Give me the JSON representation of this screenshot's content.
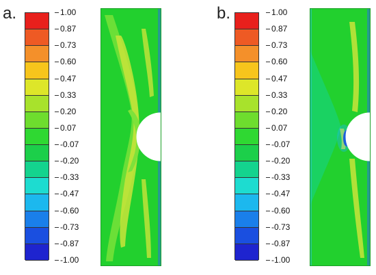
{
  "panels": [
    {
      "label": "a.",
      "id": "a"
    },
    {
      "label": "b.",
      "id": "b"
    }
  ],
  "legend": {
    "ticks": [
      "1.00",
      "0.87",
      "0.73",
      "0.60",
      "0.47",
      "0.33",
      "0.20",
      "0.07",
      "-0.07",
      "-0.20",
      "-0.33",
      "-0.47",
      "-0.60",
      "-0.73",
      "-0.87",
      "-1.00"
    ],
    "colors": [
      "#e8201c",
      "#ee5a24",
      "#f4902a",
      "#f7c51c",
      "#dde629",
      "#a8e22c",
      "#6edd2e",
      "#2fd832",
      "#1ccf4a",
      "#14d38e",
      "#1ddcd0",
      "#1cb8ee",
      "#1a7fea",
      "#1a4fe0",
      "#1e24cf"
    ]
  },
  "colors": {
    "field_base": "#22d02e",
    "stripe_yellow": "#c9e43a",
    "stripe_lime": "#7ee23a",
    "edge_blue": "#2a6fe0",
    "edge_cyan": "#2cc8c0",
    "hole_outline": "#ffffff",
    "bg": "#ffffff"
  },
  "icons": [
    "contour-legend",
    "notched-specimen"
  ]
}
